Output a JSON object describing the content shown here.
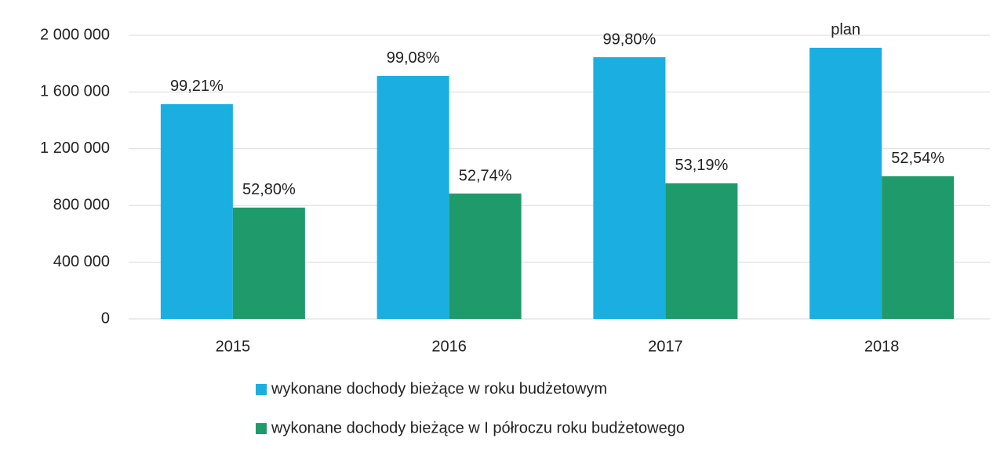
{
  "chart_data": {
    "type": "bar",
    "categories": [
      "2015",
      "2016",
      "2017",
      "2018"
    ],
    "series": [
      {
        "name": "wykonane dochody bieżące w roku budżetowym",
        "color": "#1aafe0",
        "values": [
          1514000,
          1713000,
          1845000,
          1912000
        ],
        "annotations": [
          "99,21%",
          "99,08%",
          "99,80%",
          "plan"
        ]
      },
      {
        "name": "wykonane dochody bieżące w I półroczu roku budżetowego",
        "color": "#1f9a6b",
        "values": [
          785000,
          884000,
          956000,
          1006000
        ],
        "annotations": [
          "52,80%",
          "52,74%",
          "53,19%",
          "52,54%"
        ]
      }
    ],
    "ylim": [
      0,
      2000000
    ],
    "yticks": [
      0,
      {
        "value": 400000,
        "label": "400 000"
      },
      {
        "value": 800000,
        "label": "800 000"
      },
      {
        "value": 1200000,
        "label": "1 200 000"
      },
      {
        "value": 1600000,
        "label": "1 600 000"
      },
      {
        "value": 2000000,
        "label": "2 000 000"
      }
    ],
    "grid": true,
    "legend": "bottom"
  }
}
